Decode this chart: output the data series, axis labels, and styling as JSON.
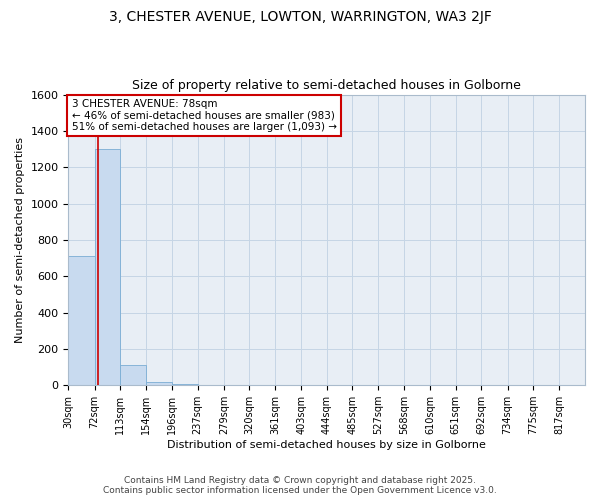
{
  "title1": "3, CHESTER AVENUE, LOWTON, WARRINGTON, WA3 2JF",
  "title2": "Size of property relative to semi-detached houses in Golborne",
  "xlabel": "Distribution of semi-detached houses by size in Golborne",
  "ylabel": "Number of semi-detached properties",
  "bar_edges": [
    30,
    72,
    113,
    154,
    196,
    237,
    279,
    320,
    361,
    403,
    444,
    485,
    527,
    568,
    610,
    651,
    692,
    734,
    775,
    817,
    858
  ],
  "bar_heights": [
    710,
    1300,
    112,
    20,
    5,
    0,
    0,
    0,
    0,
    0,
    0,
    0,
    0,
    0,
    0,
    0,
    0,
    0,
    0,
    0
  ],
  "bar_color": "#c8daef",
  "bar_edgecolor": "#7aadd4",
  "property_size": 78,
  "property_line_color": "#cc0000",
  "annotation_text": "3 CHESTER AVENUE: 78sqm\n← 46% of semi-detached houses are smaller (983)\n51% of semi-detached houses are larger (1,093) →",
  "annotation_box_facecolor": "#ffffff",
  "annotation_box_edgecolor": "#cc0000",
  "ylim": [
    0,
    1600
  ],
  "yticks": [
    0,
    200,
    400,
    600,
    800,
    1000,
    1200,
    1400,
    1600
  ],
  "footer1": "Contains HM Land Registry data © Crown copyright and database right 2025.",
  "footer2": "Contains public sector information licensed under the Open Government Licence v3.0.",
  "fig_facecolor": "#ffffff",
  "axes_facecolor": "#e8eef5",
  "grid_color": "#c5d5e5",
  "title1_fontsize": 10,
  "title2_fontsize": 9,
  "axis_label_fontsize": 8,
  "tick_fontsize": 7,
  "footer_fontsize": 6.5
}
